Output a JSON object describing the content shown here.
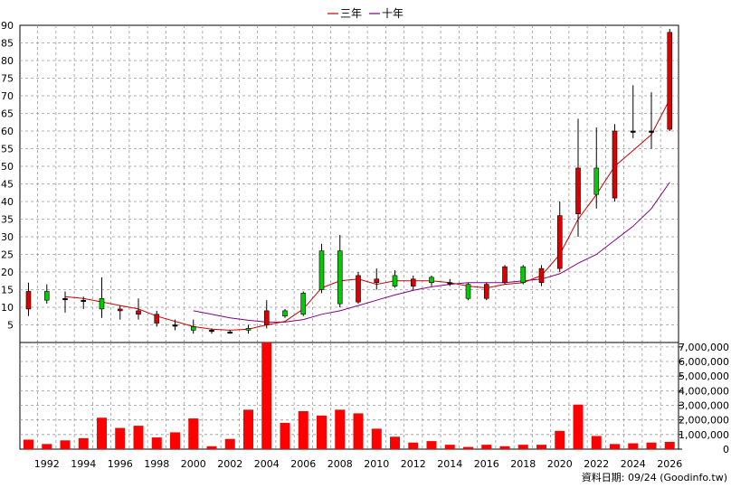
{
  "chart_data": {
    "type": "candlestick",
    "legend": [
      {
        "name": "三年",
        "color": "#cc0000"
      },
      {
        "name": "十年",
        "color": "#800080"
      }
    ],
    "footer": "資料日期: 09/24 (Goodinfo.tw)",
    "price_axis": {
      "ticks": [
        5,
        10,
        15,
        20,
        25,
        30,
        35,
        40,
        45,
        50,
        55,
        60,
        65,
        70,
        75,
        80,
        85,
        90
      ],
      "ylim": [
        0,
        90
      ]
    },
    "volume_axis": {
      "ticks": [
        0,
        1000000,
        2000000,
        3000000,
        4000000,
        5000000,
        6000000,
        7000000
      ],
      "tick_labels": [
        "0",
        "1,000,000",
        "2,000,000",
        "3,000,000",
        "4,000,000",
        "5,000,000",
        "6,000,000",
        "7,000,000"
      ],
      "ylim": [
        0,
        7300000
      ]
    },
    "x_tick_labels": [
      "1992",
      "1994",
      "1996",
      "1998",
      "2000",
      "2002",
      "2004",
      "2006",
      "2008",
      "2010",
      "2012",
      "2014",
      "2016",
      "2018",
      "2020",
      "2022",
      "2024",
      "2026"
    ],
    "years": [
      1991,
      1992,
      1993,
      1994,
      1995,
      1996,
      1997,
      1998,
      1999,
      2000,
      2001,
      2002,
      2003,
      2004,
      2005,
      2006,
      2007,
      2008,
      2009,
      2010,
      2011,
      2012,
      2013,
      2014,
      2015,
      2016,
      2017,
      2018,
      2019,
      2020,
      2021,
      2022,
      2023,
      2024,
      2025,
      2026
    ],
    "candles": [
      {
        "open": 14.5,
        "close": 9.5,
        "high": 17,
        "low": 7.5
      },
      {
        "open": 12,
        "close": 14.5,
        "high": 16.5,
        "low": 11
      },
      {
        "open": 12.5,
        "close": 12.5,
        "high": 14.5,
        "low": 8.5
      },
      {
        "open": 12,
        "close": 12,
        "high": 13,
        "low": 9.5
      },
      {
        "open": 9.5,
        "close": 12.5,
        "high": 18.5,
        "low": 7
      },
      {
        "open": 9.5,
        "close": 9,
        "high": 10.5,
        "low": 6.5
      },
      {
        "open": 9,
        "close": 8,
        "high": 12.5,
        "low": 6.5
      },
      {
        "open": 8,
        "close": 5.5,
        "high": 9,
        "low": 4.5
      },
      {
        "open": 5,
        "close": 5,
        "high": 6.5,
        "low": 3.5
      },
      {
        "open": 3.5,
        "close": 4.5,
        "high": 6.5,
        "low": 2.5
      },
      {
        "open": 3.5,
        "close": 3.5,
        "high": 4,
        "low": 2.5
      },
      {
        "open": 3,
        "close": 3,
        "high": 3.5,
        "low": 2.5
      },
      {
        "open": 3.5,
        "close": 4,
        "high": 5,
        "low": 2.5
      },
      {
        "open": 9,
        "close": 5,
        "high": 12,
        "low": 4
      },
      {
        "open": 7.5,
        "close": 9,
        "high": 9.5,
        "low": 7
      },
      {
        "open": 8,
        "close": 14,
        "high": 14.5,
        "low": 7.5
      },
      {
        "open": 15,
        "close": 26,
        "high": 28,
        "low": 14
      },
      {
        "open": 11,
        "close": 26,
        "high": 30.5,
        "low": 10
      },
      {
        "open": 19,
        "close": 11.5,
        "high": 20,
        "low": 11
      },
      {
        "open": 18,
        "close": 17,
        "high": 21,
        "low": 15
      },
      {
        "open": 16,
        "close": 19,
        "high": 20.5,
        "low": 15.5
      },
      {
        "open": 18,
        "close": 16,
        "high": 19,
        "low": 15
      },
      {
        "open": 17,
        "close": 18.5,
        "high": 19,
        "low": 16
      },
      {
        "open": 17,
        "close": 17,
        "high": 18,
        "low": 16
      },
      {
        "open": 12.5,
        "close": 16.5,
        "high": 17,
        "low": 12
      },
      {
        "open": 16.5,
        "close": 12.5,
        "high": 17,
        "low": 12
      },
      {
        "open": 21.5,
        "close": 17,
        "high": 22,
        "low": 16.5
      },
      {
        "open": 17,
        "close": 21.5,
        "high": 22,
        "low": 16.5
      },
      {
        "open": 21,
        "close": 17,
        "high": 22,
        "low": 16
      },
      {
        "open": 36,
        "close": 21,
        "high": 40,
        "low": 20
      },
      {
        "open": 49.5,
        "close": 36.5,
        "high": 63.5,
        "low": 30
      },
      {
        "open": 42,
        "close": 49.5,
        "high": 61,
        "low": 38
      },
      {
        "open": 60,
        "close": 41,
        "high": 62,
        "low": 40
      },
      {
        "open": 60,
        "close": 60,
        "high": 73,
        "low": 58
      },
      {
        "open": 60,
        "close": 60,
        "high": 71,
        "low": 55
      },
      {
        "open": 88,
        "close": 60.5,
        "high": 89,
        "low": 60
      }
    ],
    "ma3": [
      {
        "year": 1993,
        "value": 13
      },
      {
        "year": 1994,
        "value": 12.5
      },
      {
        "year": 1995,
        "value": 11.5
      },
      {
        "year": 1996,
        "value": 10.5
      },
      {
        "year": 1997,
        "value": 9.5
      },
      {
        "year": 1998,
        "value": 7.5
      },
      {
        "year": 1999,
        "value": 6
      },
      {
        "year": 2000,
        "value": 4.5
      },
      {
        "year": 2001,
        "value": 3.8
      },
      {
        "year": 2002,
        "value": 3.5
      },
      {
        "year": 2003,
        "value": 3.8
      },
      {
        "year": 2004,
        "value": 5
      },
      {
        "year": 2005,
        "value": 6
      },
      {
        "year": 2006,
        "value": 9.5
      },
      {
        "year": 2007,
        "value": 15.5
      },
      {
        "year": 2008,
        "value": 17.5
      },
      {
        "year": 2009,
        "value": 18
      },
      {
        "year": 2010,
        "value": 16.5
      },
      {
        "year": 2011,
        "value": 17.5
      },
      {
        "year": 2012,
        "value": 17.5
      },
      {
        "year": 2013,
        "value": 17.5
      },
      {
        "year": 2014,
        "value": 17
      },
      {
        "year": 2015,
        "value": 16
      },
      {
        "year": 2016,
        "value": 15.5
      },
      {
        "year": 2017,
        "value": 16.5
      },
      {
        "year": 2018,
        "value": 17
      },
      {
        "year": 2019,
        "value": 19
      },
      {
        "year": 2020,
        "value": 25
      },
      {
        "year": 2021,
        "value": 35
      },
      {
        "year": 2022,
        "value": 42
      },
      {
        "year": 2023,
        "value": 50
      },
      {
        "year": 2024,
        "value": 54.5
      },
      {
        "year": 2025,
        "value": 59
      },
      {
        "year": 2026,
        "value": 69
      }
    ],
    "ma10": [
      {
        "year": 2000,
        "value": 9
      },
      {
        "year": 2001,
        "value": 8
      },
      {
        "year": 2002,
        "value": 7
      },
      {
        "year": 2003,
        "value": 6.3
      },
      {
        "year": 2004,
        "value": 5.8
      },
      {
        "year": 2005,
        "value": 5.8
      },
      {
        "year": 2006,
        "value": 6.5
      },
      {
        "year": 2007,
        "value": 8
      },
      {
        "year": 2008,
        "value": 9
      },
      {
        "year": 2009,
        "value": 10.5
      },
      {
        "year": 2010,
        "value": 12
      },
      {
        "year": 2011,
        "value": 13.5
      },
      {
        "year": 2012,
        "value": 14.8
      },
      {
        "year": 2013,
        "value": 15.8
      },
      {
        "year": 2014,
        "value": 16.5
      },
      {
        "year": 2015,
        "value": 17
      },
      {
        "year": 2016,
        "value": 17
      },
      {
        "year": 2017,
        "value": 17
      },
      {
        "year": 2018,
        "value": 17.5
      },
      {
        "year": 2019,
        "value": 18
      },
      {
        "year": 2020,
        "value": 19.5
      },
      {
        "year": 2021,
        "value": 22.5
      },
      {
        "year": 2022,
        "value": 25
      },
      {
        "year": 2023,
        "value": 29
      },
      {
        "year": 2024,
        "value": 33
      },
      {
        "year": 2025,
        "value": 38
      },
      {
        "year": 2026,
        "value": 45.5
      }
    ],
    "volume": [
      650000,
      350000,
      600000,
      750000,
      2150000,
      1450000,
      1600000,
      800000,
      1150000,
      2100000,
      200000,
      700000,
      2700000,
      7300000,
      1800000,
      2600000,
      2300000,
      2700000,
      2450000,
      1400000,
      850000,
      450000,
      550000,
      300000,
      150000,
      300000,
      200000,
      300000,
      300000,
      1250000,
      3050000,
      900000,
      350000,
      400000,
      450000,
      500000
    ]
  }
}
